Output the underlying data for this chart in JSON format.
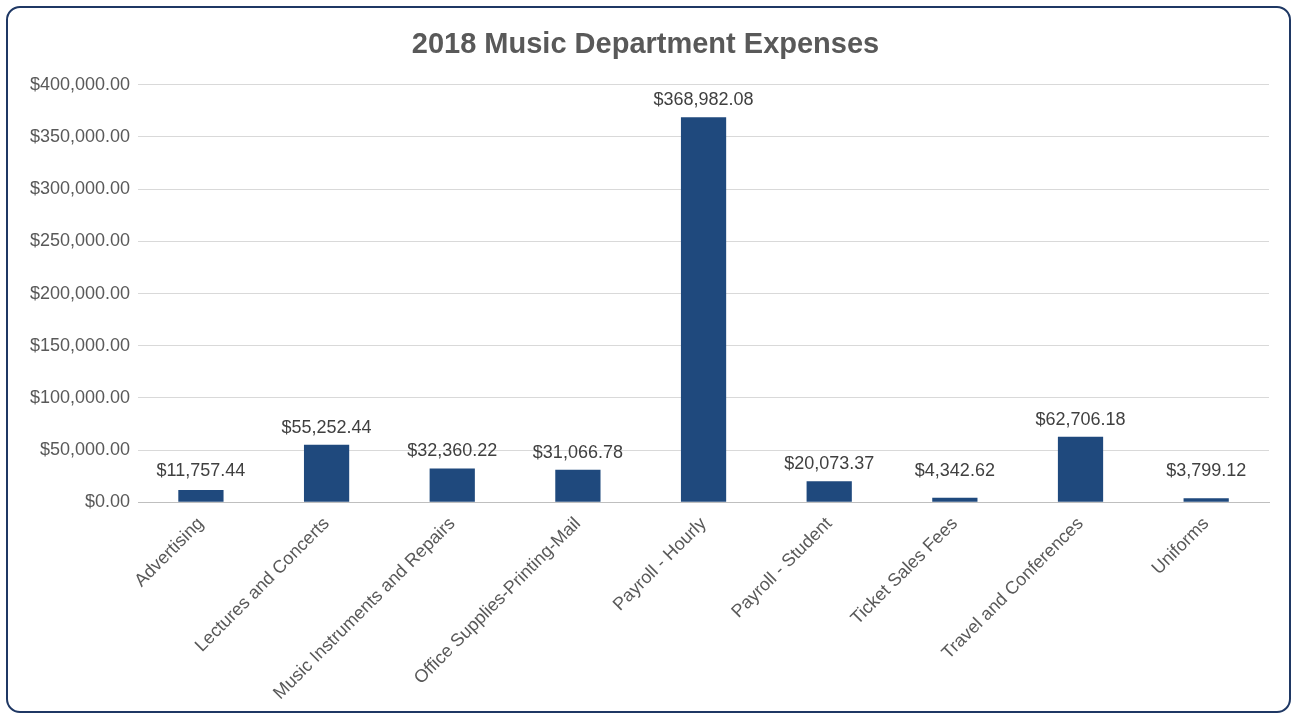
{
  "chart_data": {
    "type": "bar",
    "title": "2018 Music Department Expenses",
    "categories": [
      "Advertising",
      "Lectures and Concerts",
      "Music Instruments and Repairs",
      "Office Supplies-Printing-Mail",
      "Payroll - Hourly",
      "Payroll - Student",
      "Ticket Sales Fees",
      "Travel and Conferences",
      "Uniforms"
    ],
    "values": [
      11757.44,
      55252.44,
      32360.22,
      31066.78,
      368982.08,
      20073.37,
      4342.62,
      62706.18,
      3799.12
    ],
    "value_labels": [
      "$11,757.44",
      "$55,252.44",
      "$32,360.22",
      "$31,066.78",
      "$368,982.08",
      "$20,073.37",
      "$4,342.62",
      "$62,706.18",
      "$3,799.12"
    ],
    "color": "#1f497d",
    "ylim": [
      0,
      400000
    ],
    "yticks": [
      {
        "value": 0,
        "label": "$0.00"
      },
      {
        "value": 50000,
        "label": "$50,000.00"
      },
      {
        "value": 100000,
        "label": "$100,000.00"
      },
      {
        "value": 150000,
        "label": "$150,000.00"
      },
      {
        "value": 200000,
        "label": "$200,000.00"
      },
      {
        "value": 250000,
        "label": "$250,000.00"
      },
      {
        "value": 300000,
        "label": "$300,000.00"
      },
      {
        "value": 350000,
        "label": "$350,000.00"
      },
      {
        "value": 400000,
        "label": "$400,000.00"
      }
    ],
    "grid": "y",
    "legend": false
  }
}
